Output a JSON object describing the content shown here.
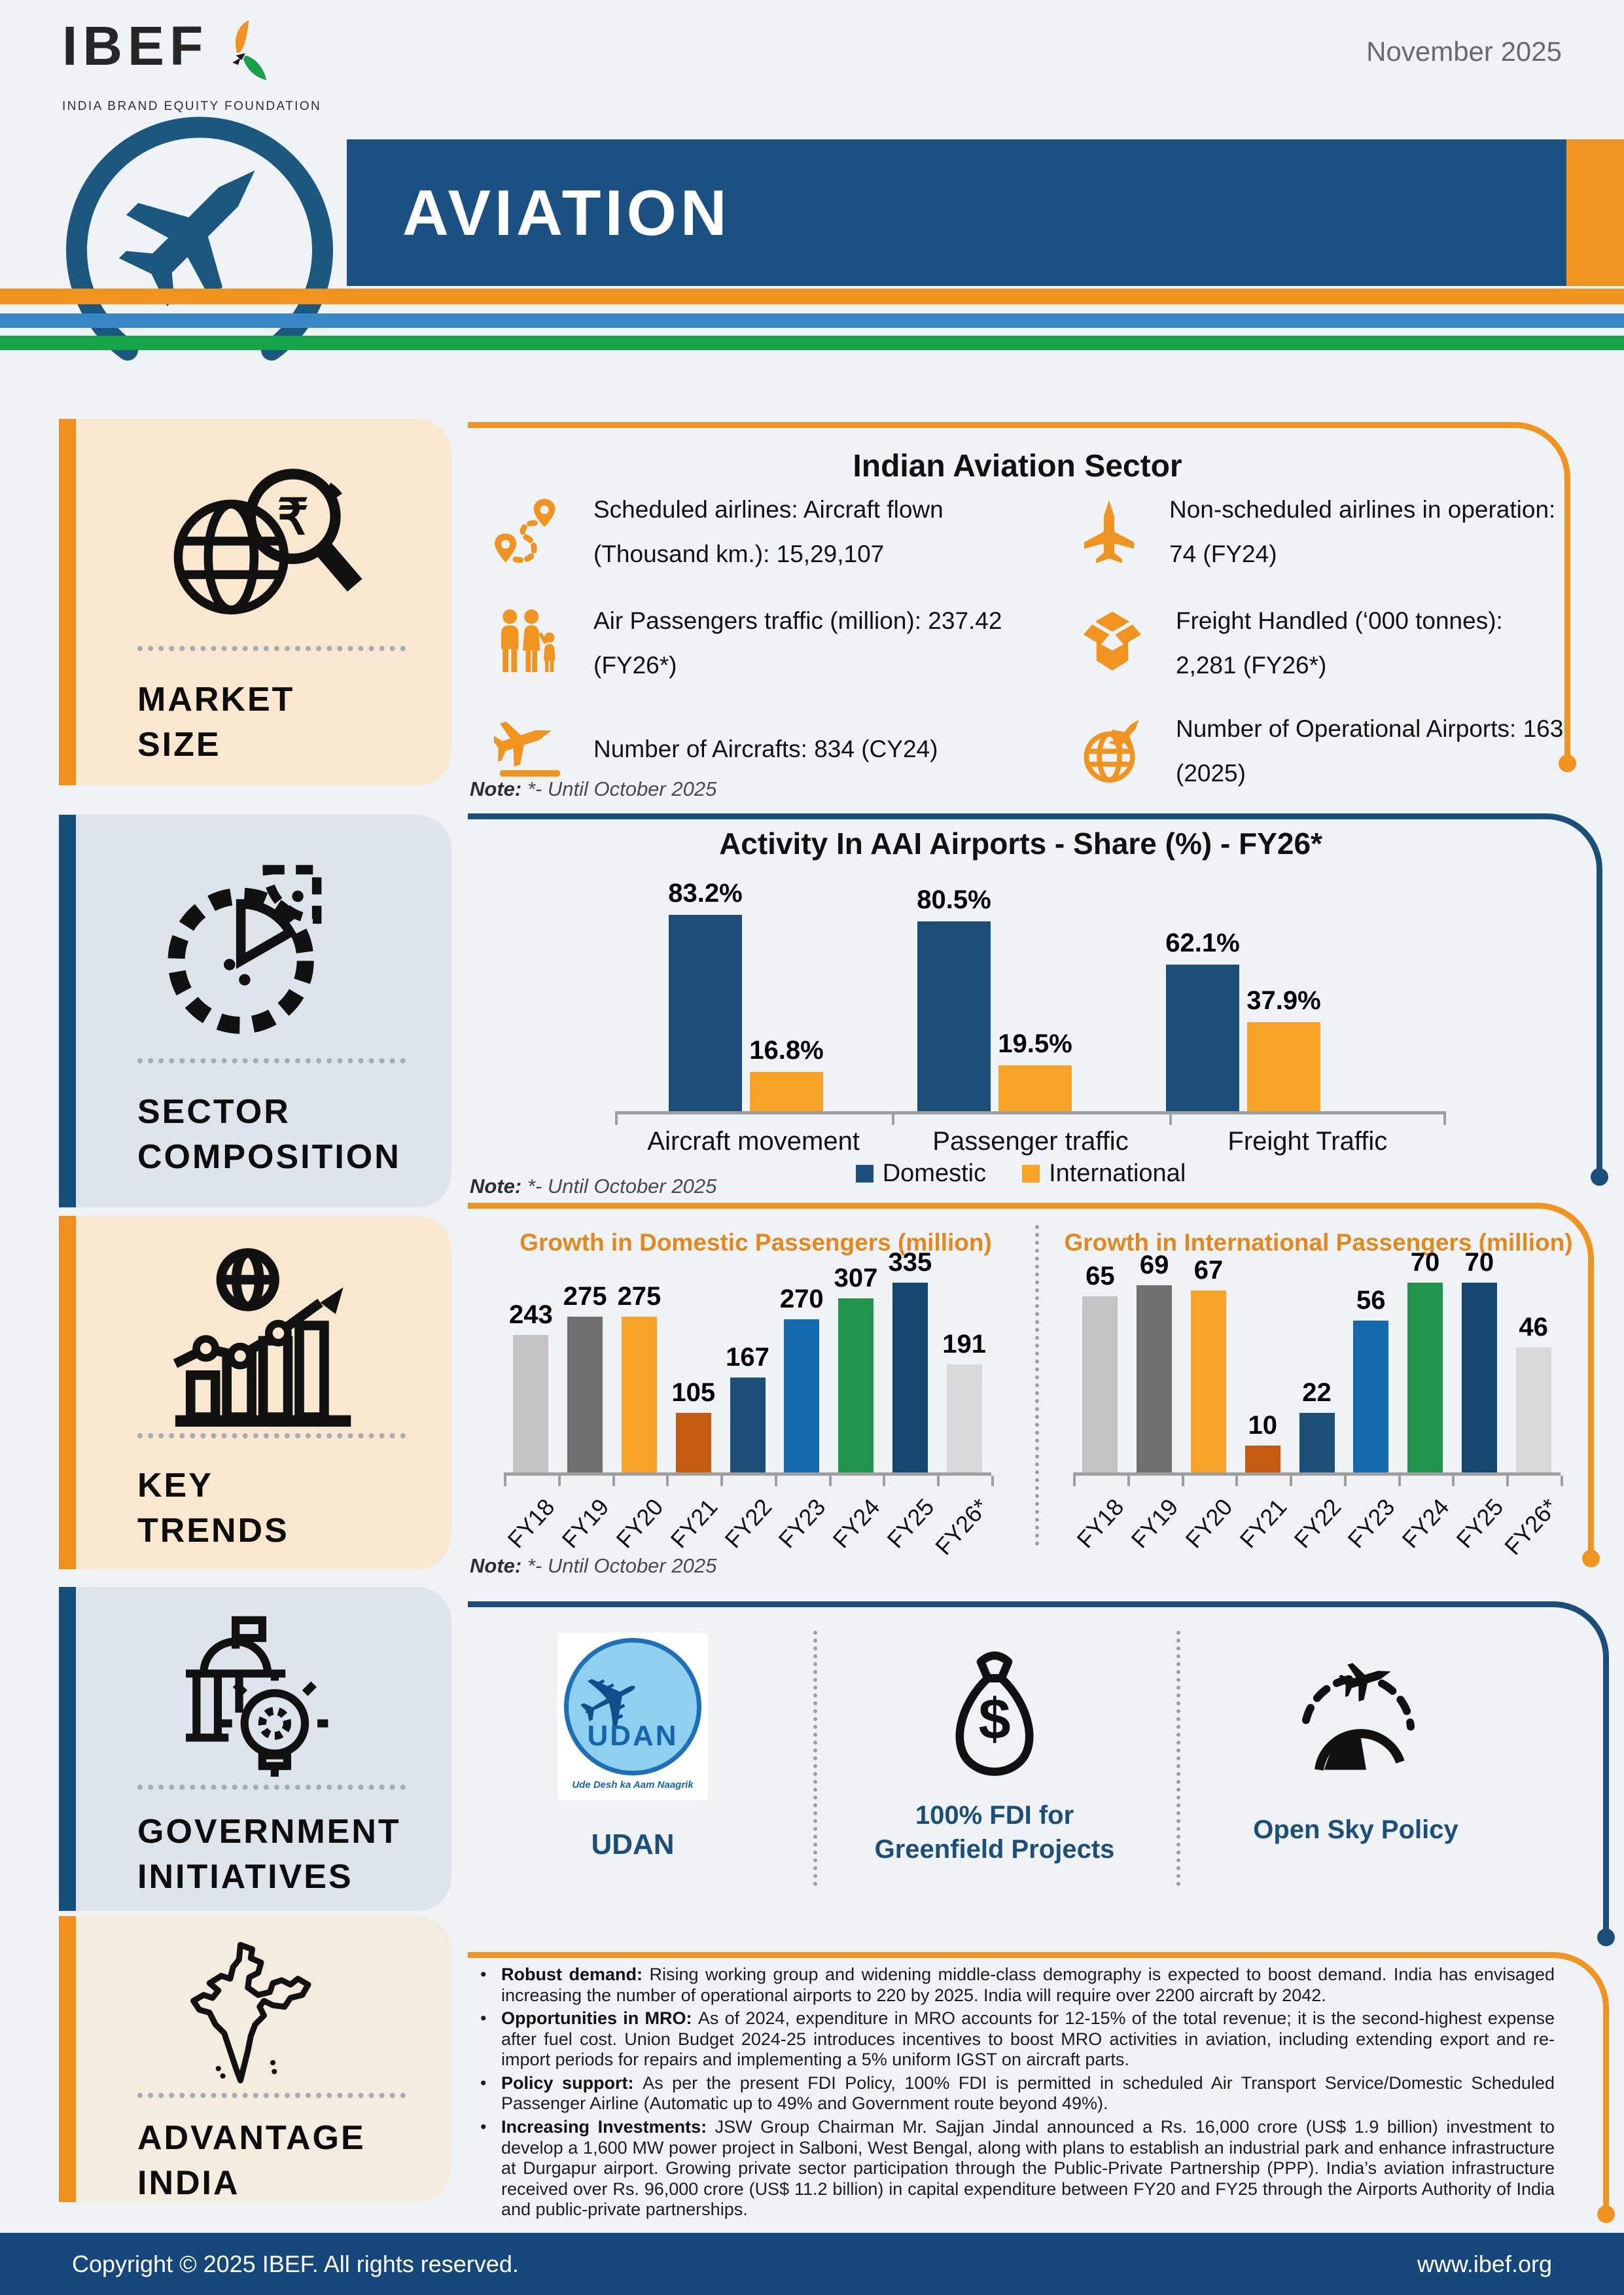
{
  "meta": {
    "brand": "IBEF",
    "brand_sub": "INDIA BRAND EQUITY FOUNDATION",
    "date": "November 2025",
    "title": "AVIATION",
    "footer_left": "Copyright © 2025 IBEF. All rights reserved.",
    "footer_right": "www.ibef.org"
  },
  "colors": {
    "navy": "#1b5083",
    "orange": "#f0941f",
    "stripe_blue": "#3a87c8",
    "stripe_green": "#17a54a"
  },
  "sidebar": {
    "cards": [
      {
        "icon": "globe-rupee-magnifier-icon",
        "line1": "MARKET",
        "line2": "SIZE"
      },
      {
        "icon": "gear-pie-icon",
        "line1": "SECTOR",
        "line2": "COMPOSITION"
      },
      {
        "icon": "growth-chart-globe-icon",
        "line1": "KEY",
        "line2": "TRENDS"
      },
      {
        "icon": "government-bulb-icon",
        "line1": "GOVERNMENT",
        "line2": "INITIATIVES"
      },
      {
        "icon": "india-map-icon",
        "line1": "ADVANTAGE",
        "line2": "INDIA"
      }
    ]
  },
  "market_size": {
    "heading": "Indian Aviation Sector",
    "stats": [
      {
        "icon": "route-icon",
        "text": "Scheduled airlines: Aircraft flown (Thousand km.): 15,29,107"
      },
      {
        "icon": "plane-up-icon",
        "text": "Non-scheduled airlines in operation: 74 (FY24)"
      },
      {
        "icon": "passengers-icon",
        "text": "Air Passengers traffic (million): 237.42 (FY26*)"
      },
      {
        "icon": "freight-box-icon",
        "text": "Freight Handled (‘000 tonnes): 2,281 (FY26*)"
      },
      {
        "icon": "plane-takeoff-icon",
        "text": "Number of Aircrafts: 834 (CY24)"
      },
      {
        "icon": "globe-plane-icon",
        "text": "Number of Operational Airports: 163 (2025)"
      }
    ],
    "note_label": "Note:",
    "note": "*- Until October 2025"
  },
  "chart_data": [
    {
      "id": "aai_share",
      "type": "bar",
      "title": "Activity In AAI Airports - Share (%) - FY26*",
      "categories": [
        "Aircraft movement",
        "Passenger traffic",
        "Freight Traffic"
      ],
      "series": [
        {
          "name": "Domestic",
          "color": "#1b4e79",
          "values": [
            83.2,
            80.5,
            62.1
          ]
        },
        {
          "name": "International",
          "color": "#f6a328",
          "values": [
            16.8,
            19.5,
            37.9
          ]
        }
      ],
      "value_suffix": "%",
      "ylim": [
        0,
        100
      ],
      "legend_position": "bottom",
      "note_label": "Note:",
      "note": "*- Until October 2025"
    },
    {
      "id": "domestic_passengers",
      "type": "bar",
      "title": "Growth in Domestic Passengers (million)",
      "categories": [
        "FY18",
        "FY19",
        "FY20",
        "FY21",
        "FY22",
        "FY23",
        "FY24",
        "FY25",
        "FY26*"
      ],
      "values": [
        243,
        275,
        275,
        105,
        167,
        270,
        307,
        335,
        191
      ],
      "colors": [
        "#c3c3c3",
        "#6f6f6f",
        "#f6a328",
        "#c55a11",
        "#1b4e79",
        "#1569ad",
        "#21944d",
        "#14476e",
        "#d8d8d8"
      ],
      "ylim": [
        0,
        380
      ]
    },
    {
      "id": "international_passengers",
      "type": "bar",
      "title": "Growth in International Passengers (million)",
      "categories": [
        "FY18",
        "FY19",
        "FY20",
        "FY21",
        "FY22",
        "FY23",
        "FY24",
        "FY25",
        "FY26*"
      ],
      "values": [
        65,
        69,
        67,
        10,
        22,
        56,
        70,
        70,
        46
      ],
      "colors": [
        "#c3c3c3",
        "#6f6f6f",
        "#f6a328",
        "#c55a11",
        "#1b4e79",
        "#1569ad",
        "#21944d",
        "#14476e",
        "#d8d8d8"
      ],
      "ylim": [
        0,
        85
      ]
    }
  ],
  "key_trends": {
    "note_label": "Note:",
    "note": "*- Until October 2025"
  },
  "government_initiatives": {
    "items": [
      {
        "icon": "udan-logo",
        "label": "UDAN",
        "logo_text": "UDAN",
        "logo_tagline": "Ude Desh ka Aam Naagrik"
      },
      {
        "icon": "money-bag-icon",
        "label": "100% FDI for Greenfield Projects"
      },
      {
        "icon": "open-sky-icon",
        "label": "Open Sky Policy"
      }
    ]
  },
  "advantage_india": {
    "bullets": [
      {
        "title": "Robust demand:",
        "text": "Rising working group and widening middle-class demography is expected to boost demand. India has envisaged increasing the number of operational airports to 220 by 2025. India will require over 2200 aircraft by 2042."
      },
      {
        "title": "Opportunities in MRO:",
        "text": "As of 2024, expenditure in MRO accounts for 12-15% of the total revenue; it is the second-highest expense after fuel cost. Union Budget 2024-25 introduces incentives to boost MRO activities in aviation, including extending export and re-import periods for repairs and implementing a 5% uniform IGST on aircraft parts."
      },
      {
        "title": "Policy support:",
        "text": "As per the present FDI Policy, 100% FDI is permitted in scheduled Air Transport Service/Domestic Scheduled Passenger Airline (Automatic up to 49% and Government route beyond 49%)."
      },
      {
        "title": "Increasing Investments:",
        "text": "JSW Group Chairman Mr. Sajjan Jindal announced a Rs. 16,000 crore (US$ 1.9 billion) investment to develop a 1,600 MW power project in Salboni, West Bengal, along with plans to establish an industrial park and enhance infrastructure at Durgapur airport. Growing private sector participation through the Public-Private Partnership (PPP). India’s aviation infrastructure received over Rs. 96,000 crore (US$ 11.2 billion) in capital expenditure between FY20 and FY25 through the Airports Authority of India and public-private partnerships."
      }
    ]
  }
}
